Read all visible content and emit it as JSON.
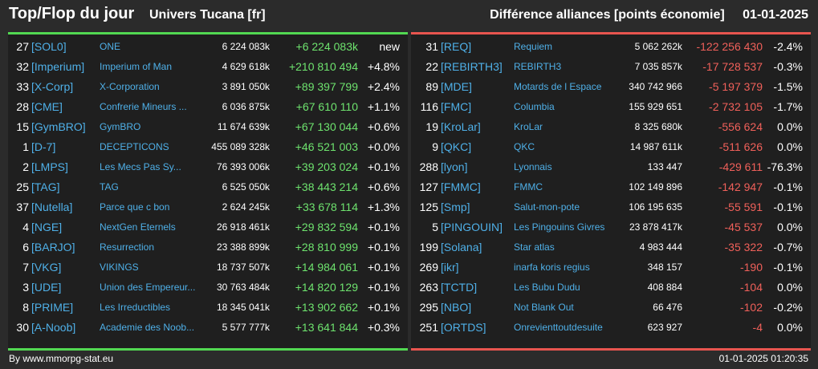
{
  "header": {
    "title": "Top/Flop du jour",
    "subtitle": "Univers Tucana [fr]",
    "metric": "Différence alliances [points économie]",
    "date": "01-01-2025"
  },
  "colors": {
    "positive": "#6ee36e",
    "negative": "#f0605a",
    "tag": "#4fb0e8",
    "top_border": "#52d852",
    "flop_border": "#e8554f"
  },
  "top": [
    {
      "rank": "27",
      "tag": "[SOL0]",
      "name": "ONE",
      "points": "6 224 083k",
      "diff": "+6 224 083k",
      "pct": "new"
    },
    {
      "rank": "32",
      "tag": "[Imperium]",
      "name": "Imperium of Man",
      "points": "4 629 618k",
      "diff": "+210 810 494",
      "pct": "+4.8%"
    },
    {
      "rank": "33",
      "tag": "[X-Corp]",
      "name": "X-Corporation",
      "points": "3 891 050k",
      "diff": "+89 397 799",
      "pct": "+2.4%"
    },
    {
      "rank": "28",
      "tag": "[CME]",
      "name": "Confrerie Mineurs ...",
      "points": "6 036 875k",
      "diff": "+67 610 110",
      "pct": "+1.1%"
    },
    {
      "rank": "15",
      "tag": "[GymBRO]",
      "name": "GymBRO",
      "points": "11 674 639k",
      "diff": "+67 130 044",
      "pct": "+0.6%"
    },
    {
      "rank": "1",
      "tag": "[D-7]",
      "name": "DECEPTICONS",
      "points": "455 089 328k",
      "diff": "+46 521 003",
      "pct": "+0.0%"
    },
    {
      "rank": "2",
      "tag": "[LMPS]",
      "name": "Les Mecs Pas Sy...",
      "points": "76 393 006k",
      "diff": "+39 203 024",
      "pct": "+0.1%"
    },
    {
      "rank": "25",
      "tag": "[TAG]",
      "name": "TAG",
      "points": "6 525 050k",
      "diff": "+38 443 214",
      "pct": "+0.6%"
    },
    {
      "rank": "37",
      "tag": "[Nutella]",
      "name": "Parce que c bon",
      "points": "2 624 245k",
      "diff": "+33 678 114",
      "pct": "+1.3%"
    },
    {
      "rank": "4",
      "tag": "[NGE]",
      "name": "NextGen Eternels",
      "points": "26 918 461k",
      "diff": "+29 832 594",
      "pct": "+0.1%"
    },
    {
      "rank": "6",
      "tag": "[BARJO]",
      "name": "Resurrection",
      "points": "23 388 899k",
      "diff": "+28 810 999",
      "pct": "+0.1%"
    },
    {
      "rank": "7",
      "tag": "[VKG]",
      "name": "VIKINGS",
      "points": "18 737 507k",
      "diff": "+14 984 061",
      "pct": "+0.1%"
    },
    {
      "rank": "3",
      "tag": "[UDE]",
      "name": "Union des Empereur...",
      "points": "30 763 484k",
      "diff": "+14 820 129",
      "pct": "+0.1%"
    },
    {
      "rank": "8",
      "tag": "[PRIME]",
      "name": "Les Irreductibles",
      "points": "18 345 041k",
      "diff": "+13 902 662",
      "pct": "+0.1%"
    },
    {
      "rank": "30",
      "tag": "[A-Noob]",
      "name": "Academie des Noob...",
      "points": "5 577 777k",
      "diff": "+13 641 844",
      "pct": "+0.3%"
    }
  ],
  "flop": [
    {
      "rank": "31",
      "tag": "[REQ]",
      "name": "Requiem",
      "points": "5 062 262k",
      "diff": "-122 256 430",
      "pct": "-2.4%"
    },
    {
      "rank": "22",
      "tag": "[REBIRTH3]",
      "name": "REBIRTH3",
      "points": "7 035 857k",
      "diff": "-17 728 537",
      "pct": "-0.3%"
    },
    {
      "rank": "89",
      "tag": "[MDE]",
      "name": "Motards de l Espace",
      "points": "340 742 966",
      "diff": "-5 197 379",
      "pct": "-1.5%"
    },
    {
      "rank": "116",
      "tag": "[FMC]",
      "name": "Columbia",
      "points": "155 929 651",
      "diff": "-2 732 105",
      "pct": "-1.7%"
    },
    {
      "rank": "19",
      "tag": "[KroLar]",
      "name": "KroLar",
      "points": "8 325 680k",
      "diff": "-556 624",
      "pct": "0.0%"
    },
    {
      "rank": "9",
      "tag": "[QKC]",
      "name": "QKC",
      "points": "14 987 611k",
      "diff": "-511 626",
      "pct": "0.0%"
    },
    {
      "rank": "288",
      "tag": "[lyon]",
      "name": "Lyonnais",
      "points": "133 447",
      "diff": "-429 611",
      "pct": "-76.3%"
    },
    {
      "rank": "127",
      "tag": "[FMMC]",
      "name": "FMMC",
      "points": "102 149 896",
      "diff": "-142 947",
      "pct": "-0.1%"
    },
    {
      "rank": "125",
      "tag": "[Smp]",
      "name": "Salut-mon-pote",
      "points": "106 195 635",
      "diff": "-55 591",
      "pct": "-0.1%"
    },
    {
      "rank": "5",
      "tag": "[PINGOUIN]",
      "name": "Les Pingouins Givres",
      "points": "23 878 417k",
      "diff": "-45 537",
      "pct": "0.0%"
    },
    {
      "rank": "199",
      "tag": "[Solana]",
      "name": "Star atlas",
      "points": "4 983 444",
      "diff": "-35 322",
      "pct": "-0.7%"
    },
    {
      "rank": "269",
      "tag": "[ikr]",
      "name": "inarfa koris regius",
      "points": "348 157",
      "diff": "-190",
      "pct": "-0.1%"
    },
    {
      "rank": "263",
      "tag": "[TCTD]",
      "name": "Les Bubu Dudu",
      "points": "408 884",
      "diff": "-104",
      "pct": "0.0%"
    },
    {
      "rank": "295",
      "tag": "[NBO]",
      "name": "Not Blank Out",
      "points": "66 476",
      "diff": "-102",
      "pct": "-0.2%"
    },
    {
      "rank": "251",
      "tag": "[ORTDS]",
      "name": "Onrevienttoutdesuite",
      "points": "623 927",
      "diff": "-4",
      "pct": "0.0%"
    }
  ],
  "footer": {
    "credit": "By www.mmorpg-stat.eu",
    "timestamp": "01-01-2025 01:20:35"
  }
}
